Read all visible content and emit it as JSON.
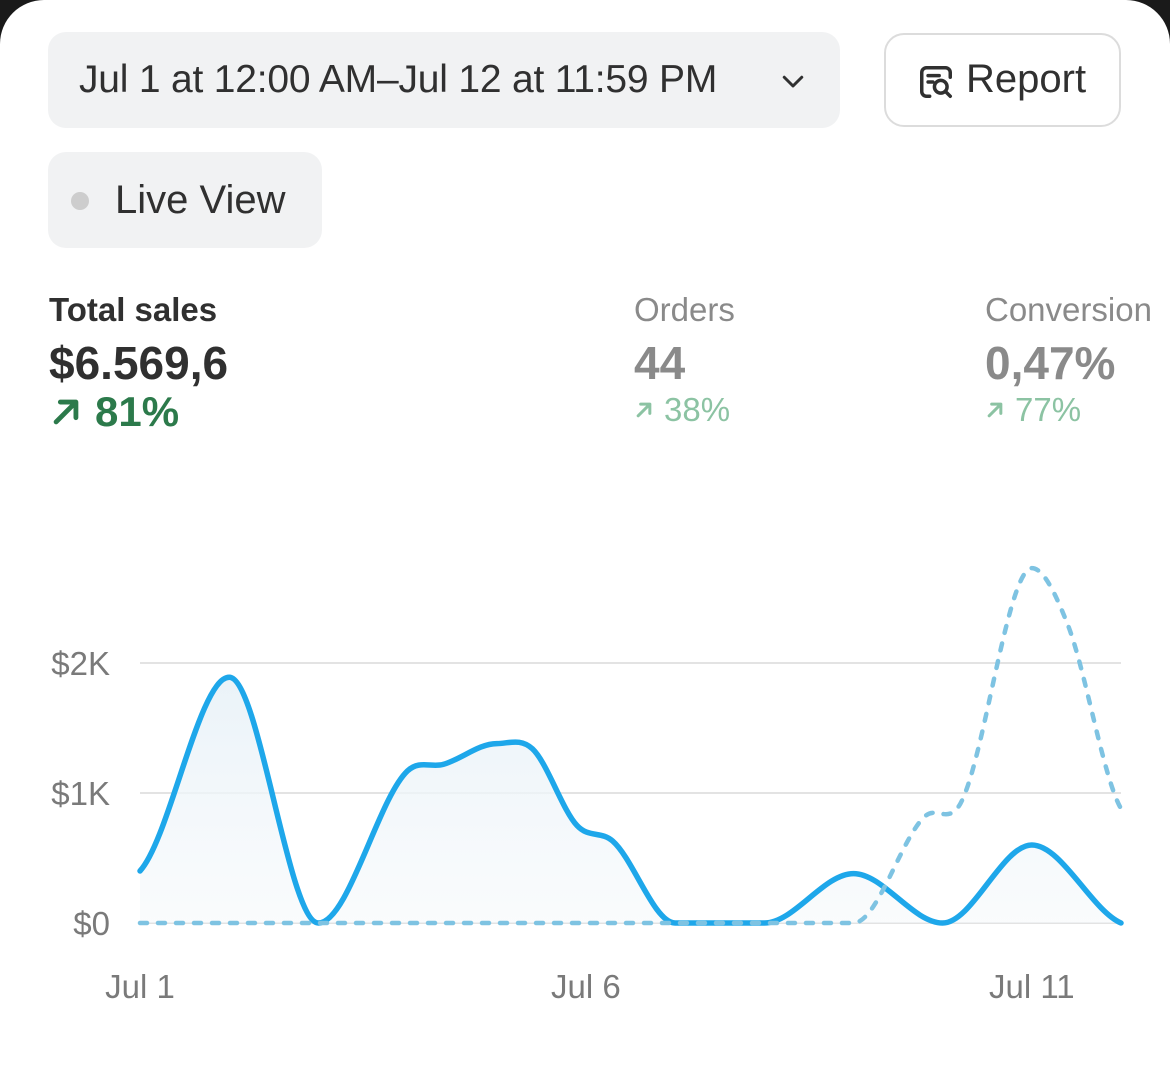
{
  "date_range": {
    "label": "Jul 1 at 12:00 AM–Jul 12 at 11:59 PM",
    "icon": "chevron-down-icon"
  },
  "report_button": {
    "label": "Report",
    "icon": "report-search-icon"
  },
  "live_view": {
    "label": "Live View",
    "dot_color": "#cdcdcd"
  },
  "metrics": [
    {
      "label": "Total sales",
      "value": "$6.569,6",
      "change": "81%",
      "direction": "up",
      "active": true
    },
    {
      "label": "Orders",
      "value": "44",
      "change": "38%",
      "direction": "up",
      "active": false
    },
    {
      "label": "Conversion",
      "value": "0,47%",
      "change": "77%",
      "direction": "up",
      "active": false
    }
  ],
  "colors": {
    "current_series": "#1ea7ea",
    "comparison_series": "#7ec3e2",
    "positive_change": "#2c7a4b",
    "positive_change_muted": "#8cc3a3",
    "gridline": "#e3e3e3"
  },
  "chart_data": {
    "type": "line",
    "x": [
      1,
      2,
      3,
      4,
      5,
      6,
      7,
      8,
      9,
      10,
      11,
      12
    ],
    "xticks": [
      {
        "x": 1,
        "label": "Jul 1"
      },
      {
        "x": 6,
        "label": "Jul 6"
      },
      {
        "x": 11,
        "label": "Jul 11"
      }
    ],
    "yticks": [
      {
        "value": 0,
        "label": "$0"
      },
      {
        "value": 1000,
        "label": "$1K"
      },
      {
        "value": 2000,
        "label": "$2K"
      }
    ],
    "ylim": [
      0,
      2000
    ],
    "grid": true,
    "series": [
      {
        "style": "solid",
        "area_fill": true,
        "points": [
          [
            1.0,
            400
          ],
          [
            2.0,
            1890
          ],
          [
            3.0,
            0
          ],
          [
            4.0,
            1170
          ],
          [
            4.4,
            1220
          ],
          [
            5.0,
            1380
          ],
          [
            5.4,
            1340
          ],
          [
            5.9,
            750
          ],
          [
            6.3,
            630
          ],
          [
            7.0,
            0
          ],
          [
            8.0,
            0
          ],
          [
            9.0,
            380
          ],
          [
            10.0,
            0
          ],
          [
            11.0,
            600
          ],
          [
            12.0,
            0
          ]
        ]
      },
      {
        "style": "dashed",
        "area_fill": false,
        "points": [
          [
            1.0,
            0
          ],
          [
            2.0,
            0
          ],
          [
            3.0,
            0
          ],
          [
            4.0,
            0
          ],
          [
            5.0,
            0
          ],
          [
            6.0,
            0
          ],
          [
            7.0,
            0
          ],
          [
            8.0,
            0
          ],
          [
            9.0,
            0
          ],
          [
            9.8,
            820
          ],
          [
            10.2,
            920
          ],
          [
            11.0,
            2730
          ],
          [
            11.4,
            2300
          ],
          [
            12.0,
            880
          ]
        ]
      }
    ]
  }
}
